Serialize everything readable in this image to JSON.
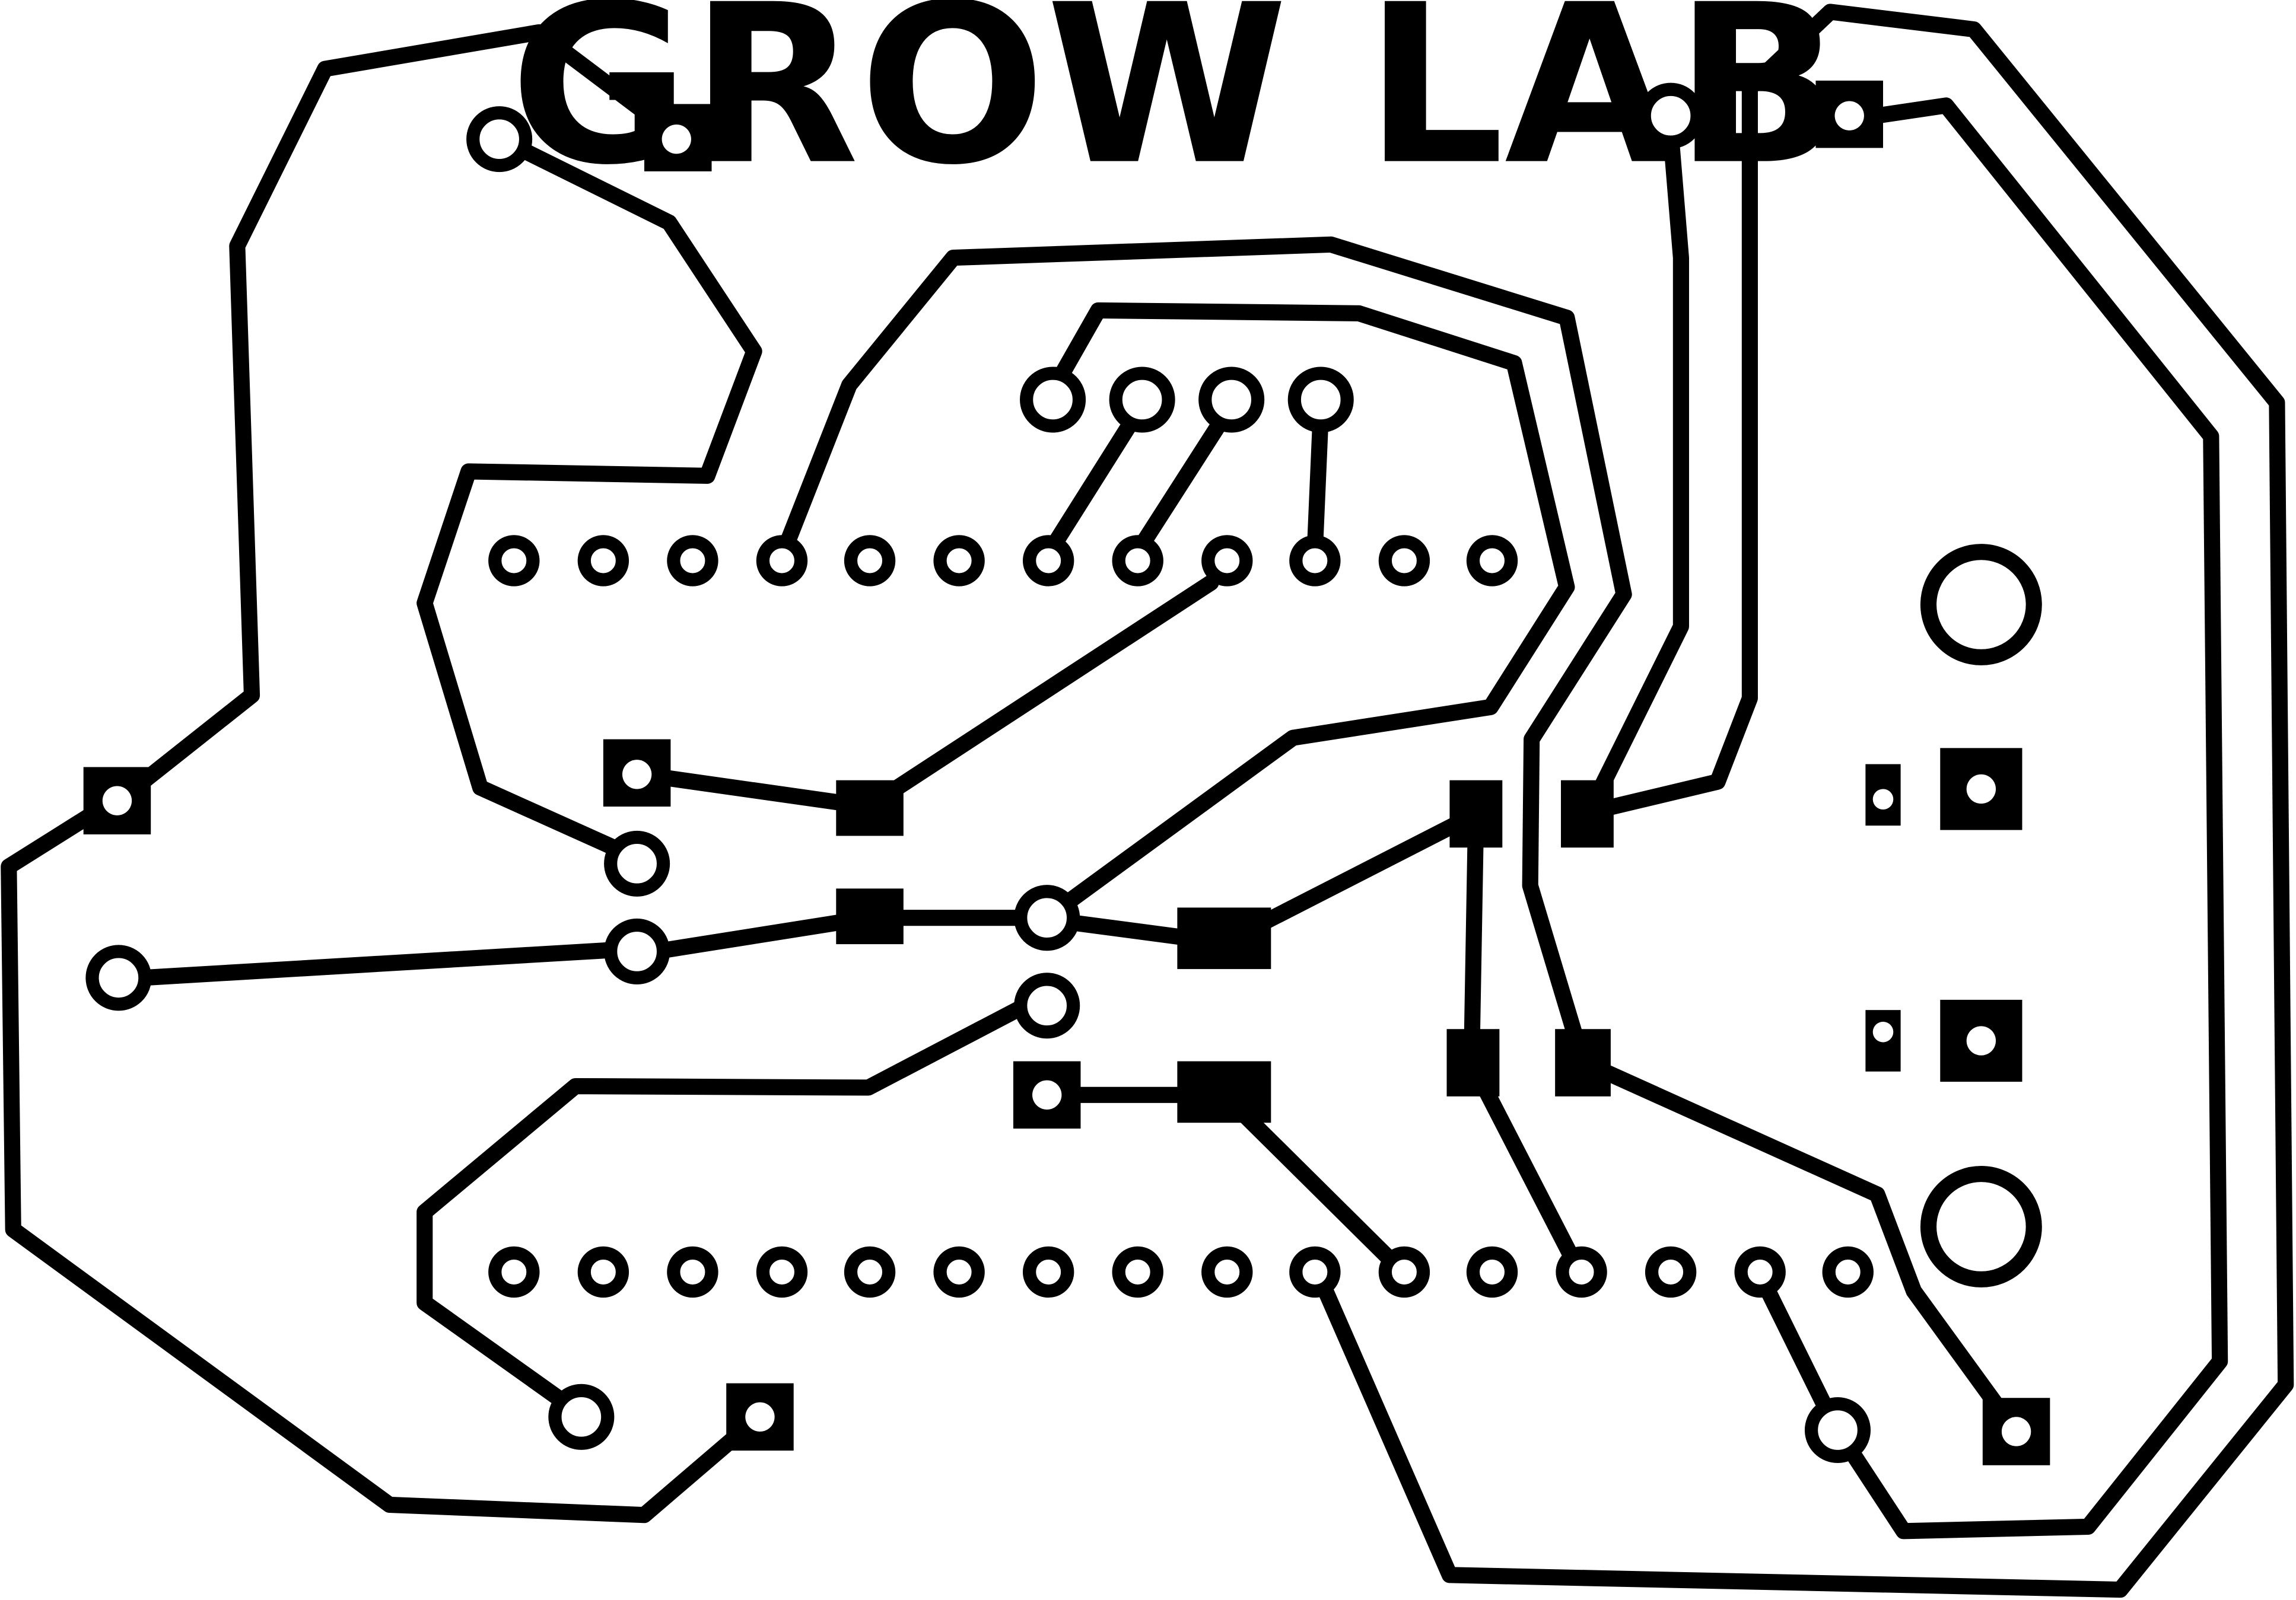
{
  "board": {
    "title": "GROW LAB",
    "colors": {
      "ink": "#000000",
      "background": "#ffffff"
    }
  }
}
